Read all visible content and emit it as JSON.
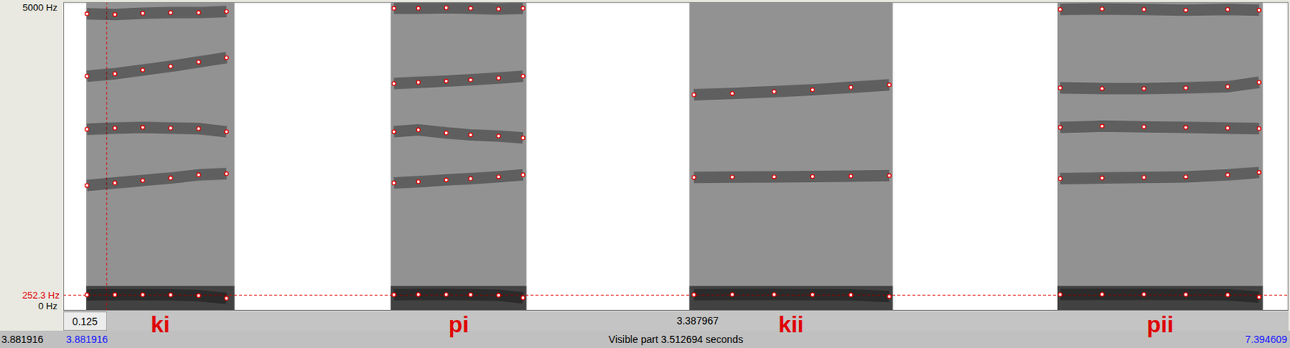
{
  "chart_data": {
    "type": "spectrogram",
    "color": "#e00000",
    "marker": "circle",
    "xlim": [
      3.881916,
      7.394609
    ],
    "ylim": [
      0,
      5000
    ],
    "yticks": [
      {
        "value": 0,
        "label": "0 Hz"
      },
      {
        "value": 5000,
        "label": "5000 Hz"
      }
    ],
    "cursor": {
      "time": 4.006916,
      "frequency": 252.3,
      "frequency_label": "252.3 Hz"
    },
    "intervals": [
      0.125,
      3.387967
    ],
    "window_start": 3.881916,
    "window_start_label": "3.881916",
    "window_end_label": "7.394609",
    "visible_label": "Visible part 3.512694 seconds",
    "segments": [
      {
        "label": "ki",
        "start": 3.948,
        "end": 4.373,
        "times": [
          3.95,
          4.03,
          4.11,
          4.19,
          4.27,
          4.35
        ],
        "formants": [
          [
            255,
            258,
            258,
            255,
            245,
            200
          ],
          [
            2030,
            2070,
            2110,
            2150,
            2200,
            2220
          ],
          [
            2940,
            2960,
            2970,
            2960,
            2950,
            2900
          ],
          [
            3800,
            3840,
            3900,
            3960,
            4030,
            4100
          ],
          [
            4810,
            4800,
            4820,
            4830,
            4830,
            4850
          ]
        ]
      },
      {
        "label": "pi",
        "start": 4.821,
        "end": 5.21,
        "times": [
          4.83,
          4.9,
          4.98,
          5.05,
          5.13,
          5.2
        ],
        "formants": [
          [
            258,
            262,
            262,
            258,
            250,
            210
          ],
          [
            2070,
            2090,
            2120,
            2140,
            2170,
            2200
          ],
          [
            2900,
            2930,
            2880,
            2850,
            2830,
            2800
          ],
          [
            3680,
            3700,
            3720,
            3740,
            3770,
            3800
          ],
          [
            4900,
            4900,
            4910,
            4900,
            4890,
            4900
          ]
        ]
      },
      {
        "label": "kii",
        "start": 5.677,
        "end": 6.26,
        "times": [
          5.69,
          5.8,
          5.92,
          6.03,
          6.14,
          6.25
        ],
        "formants": [
          [
            258,
            262,
            262,
            260,
            255,
            230
          ],
          [
            2160,
            2165,
            2170,
            2175,
            2180,
            2190
          ],
          [
            3500,
            3520,
            3550,
            3580,
            3620,
            3660
          ]
        ]
      },
      {
        "label": "pii",
        "start": 6.732,
        "end": 7.321,
        "times": [
          6.74,
          6.86,
          6.98,
          7.1,
          7.22,
          7.31
        ],
        "formants": [
          [
            262,
            265,
            265,
            262,
            255,
            220
          ],
          [
            2140,
            2150,
            2160,
            2170,
            2200,
            2240
          ],
          [
            2970,
            2990,
            2980,
            2970,
            2960,
            2950
          ],
          [
            3610,
            3600,
            3600,
            3610,
            3630,
            3700
          ],
          [
            4880,
            4890,
            4880,
            4870,
            4880,
            4870
          ]
        ]
      }
    ]
  }
}
